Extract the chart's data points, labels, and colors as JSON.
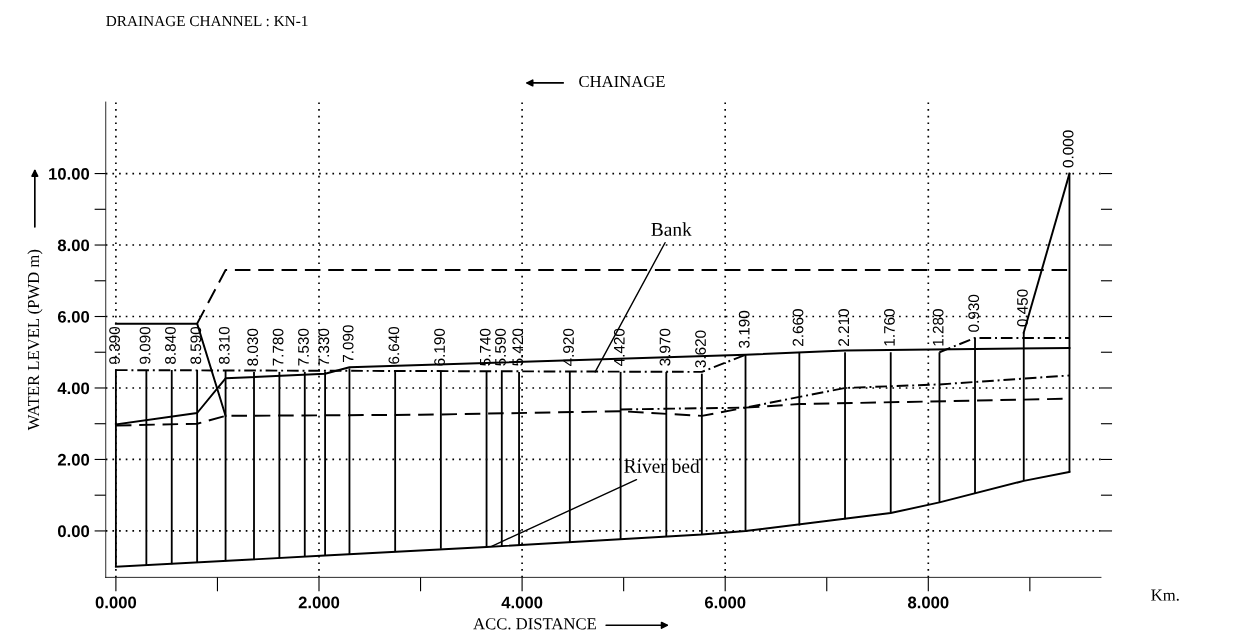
{
  "chart_data": {
    "type": "line",
    "title": "DRAINAGE CHANNEL : KN-1",
    "xlabel": "ACC. DISTANCE",
    "ylabel": "WATER LEVEL (PWD m)",
    "annotations": [
      "CHAINAGE",
      "Km.",
      {
        "text": "Bank",
        "x": 4.72,
        "y": 4.45
      },
      {
        "text": "River bed",
        "x": 3.7,
        "y": -0.43
      },
      {
        "text": "9.390",
        "x": 0,
        "y": 4.5
      },
      {
        "text": "9.090",
        "x": 0.3,
        "y": 4.5
      },
      {
        "text": "8.840",
        "x": 0.55,
        "y": 4.5
      },
      {
        "text": "8.590",
        "x": 0.8,
        "y": 4.5
      },
      {
        "text": "8.310",
        "x": 1.08,
        "y": 4.5
      },
      {
        "text": "8.030",
        "x": 1.36,
        "y": 4.45
      },
      {
        "text": "7.780",
        "x": 1.61,
        "y": 4.45
      },
      {
        "text": "7.530",
        "x": 1.86,
        "y": 4.45
      },
      {
        "text": "7.330",
        "x": 2.06,
        "y": 4.45
      },
      {
        "text": "7.090",
        "x": 2.3,
        "y": 4.55
      },
      {
        "text": "6.640",
        "x": 2.75,
        "y": 4.5
      },
      {
        "text": "6.190",
        "x": 3.2,
        "y": 4.45
      },
      {
        "text": "5.740",
        "x": 3.65,
        "y": 4.45
      },
      {
        "text": "5.590",
        "x": 3.8,
        "y": 4.45
      },
      {
        "text": "5.420",
        "x": 3.97,
        "y": 4.45
      },
      {
        "text": "4.920",
        "x": 4.47,
        "y": 4.45
      },
      {
        "text": "4.420",
        "x": 4.97,
        "y": 4.45
      },
      {
        "text": "3.970",
        "x": 5.42,
        "y": 4.45
      },
      {
        "text": "3.620",
        "x": 5.77,
        "y": 4.4
      },
      {
        "text": "3.190",
        "x": 6.2,
        "y": 4.95
      },
      {
        "text": "2.660",
        "x": 6.73,
        "y": 5.0
      },
      {
        "text": "2.210",
        "x": 7.18,
        "y": 5.0
      },
      {
        "text": "1.760",
        "x": 7.63,
        "y": 5.0
      },
      {
        "text": "1.280",
        "x": 8.11,
        "y": 5.0
      },
      {
        "text": "0.930",
        "x": 8.46,
        "y": 5.4
      },
      {
        "text": "0.450",
        "x": 8.94,
        "y": 5.55
      },
      {
        "text": "0.000",
        "x": 9.39,
        "y": 10.0
      }
    ],
    "xlim": [
      -0.1,
      9.7
    ],
    "ylim": [
      -1.3,
      12
    ],
    "xticks": [
      {
        "value": 0,
        "label": "0.000"
      },
      {
        "value": 1,
        "label": null
      },
      {
        "value": 2,
        "label": "2.000"
      },
      {
        "value": 3,
        "label": null
      },
      {
        "value": 4,
        "label": "4.000"
      },
      {
        "value": 5,
        "label": null
      },
      {
        "value": 6,
        "label": "6.000"
      },
      {
        "value": 7,
        "label": null
      },
      {
        "value": 8,
        "label": "8.000"
      },
      {
        "value": 9,
        "label": null
      }
    ],
    "yticks": [
      {
        "value": 0,
        "label": "0.00"
      },
      {
        "value": 1,
        "label": null
      },
      {
        "value": 2,
        "label": "2.00"
      },
      {
        "value": 3,
        "label": null
      },
      {
        "value": 4,
        "label": "4.00"
      },
      {
        "value": 5,
        "label": null
      },
      {
        "value": 6,
        "label": "6.00"
      },
      {
        "value": 7,
        "label": null
      },
      {
        "value": 8,
        "label": "8.00"
      },
      {
        "value": 9,
        "label": null
      },
      {
        "value": 10,
        "label": "10.00"
      }
    ],
    "grid": true,
    "legend": false,
    "series": [
      {
        "type": "bar",
        "color": "#000000",
        "x": [
          0,
          0.3,
          0.55,
          0.8,
          1.08,
          1.36,
          1.61,
          1.86,
          2.06,
          2.3,
          2.75,
          3.2,
          3.65,
          3.8,
          3.97,
          4.47,
          4.97,
          5.42,
          5.77,
          6.2,
          6.73,
          7.18,
          7.63,
          8.11,
          8.46,
          8.94,
          9.39
        ],
        "base": [
          -1.0,
          -0.97,
          -0.93,
          -0.9,
          -0.85,
          -0.8,
          -0.76,
          -0.72,
          -0.69,
          -0.65,
          -0.56,
          -0.5,
          -0.45,
          -0.43,
          -0.4,
          -0.33,
          -0.25,
          -0.17,
          -0.1,
          0.0,
          0.15,
          0.33,
          0.5,
          0.8,
          1.05,
          1.4,
          1.65
        ],
        "values": [
          5.5,
          5.47,
          5.43,
          5.4,
          5.35,
          5.25,
          5.21,
          5.17,
          5.14,
          5.2,
          5.06,
          4.95,
          4.9,
          4.88,
          4.85,
          4.78,
          4.7,
          4.62,
          4.5,
          4.95,
          4.85,
          4.67,
          4.5,
          4.2,
          4.35,
          4.15,
          8.35
        ]
      },
      {
        "color": "#000000",
        "line_style": "solid",
        "x": [
          0,
          2.06,
          3.65,
          5.77,
          6.2,
          7.63,
          8.11,
          8.94,
          9.39
        ],
        "values": [
          -1.0,
          -0.69,
          -0.45,
          -0.1,
          0.0,
          0.5,
          0.8,
          1.4,
          1.65
        ]
      },
      {
        "color": "#000000",
        "line_style": "solid",
        "x": [
          0,
          0.8,
          1.08,
          2.06,
          2.3,
          6.2,
          7.18,
          9.39
        ],
        "values": [
          2.98,
          3.3,
          4.27,
          4.4,
          4.58,
          4.93,
          5.05,
          5.12
        ]
      },
      {
        "color": "#000000",
        "line_style": "dotted",
        "x": [
          0,
          5.77,
          6.2
        ],
        "values": [
          4.5,
          4.45,
          4.93
        ]
      },
      {
        "color": "#000000",
        "line_style": "dotted",
        "x": [
          8.11,
          8.46,
          9.39
        ],
        "values": [
          5.0,
          5.4,
          5.4
        ]
      },
      {
        "color": "#000000",
        "line_style": "solid",
        "x": [
          0,
          0.8,
          1.08
        ],
        "values": [
          5.8,
          5.8,
          3.22
        ]
      },
      {
        "color": "#000000",
        "line_style": "dashed",
        "x": [
          0.8,
          1.08,
          9.39
        ],
        "values": [
          5.8,
          7.3,
          7.3
        ]
      },
      {
        "color": "#000000",
        "line_style": "solid",
        "x": [
          8.94,
          9.39
        ],
        "values": [
          5.55,
          10.0
        ]
      },
      {
        "color": "#000000",
        "line_style": "dashed",
        "x": [
          0,
          0.8,
          1.08,
          3.0,
          4.97,
          5.77,
          6.2,
          6.73,
          9.39
        ],
        "values": [
          2.95,
          3.0,
          3.22,
          3.25,
          3.35,
          3.22,
          3.45,
          3.55,
          3.7
        ]
      },
      {
        "color": "#000000",
        "line_style": "dotted",
        "x": [
          4.97,
          6.2,
          6.73,
          7.18,
          8.11,
          9.39
        ],
        "values": [
          3.4,
          3.45,
          3.75,
          4.0,
          4.1,
          4.35
        ]
      }
    ]
  }
}
